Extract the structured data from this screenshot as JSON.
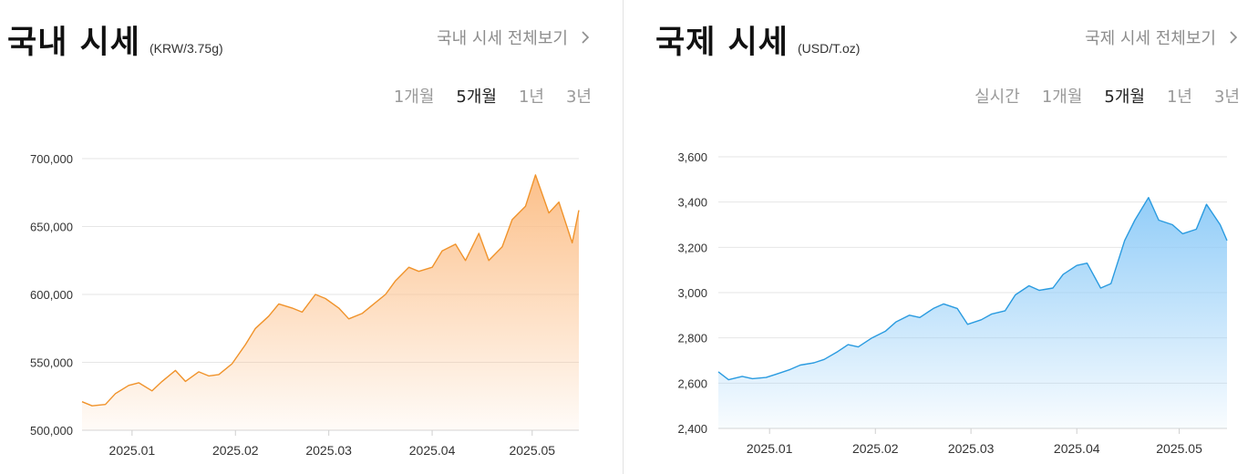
{
  "domestic": {
    "title": "국내 시세",
    "unit": "(KRW/3.75g)",
    "view_all": "국내 시세 전체보기",
    "tabs": [
      {
        "label": "1개월",
        "active": false
      },
      {
        "label": "5개월",
        "active": true
      },
      {
        "label": "1년",
        "active": false
      },
      {
        "label": "3년",
        "active": false
      }
    ]
  },
  "international": {
    "title": "국제 시세",
    "unit": "(USD/T.oz)",
    "view_all": "국제 시세 전체보기",
    "tabs": [
      {
        "label": "실시간",
        "active": false
      },
      {
        "label": "1개월",
        "active": false
      },
      {
        "label": "5개월",
        "active": true
      },
      {
        "label": "1년",
        "active": false
      },
      {
        "label": "3년",
        "active": false
      }
    ]
  },
  "chart_data": [
    {
      "type": "area",
      "ylim": [
        500000,
        700000
      ],
      "grid": true,
      "line_color": "#f0932b",
      "fill_color": "#fcc08a",
      "x_range": [
        "2024-12-17",
        "2025-05-15"
      ],
      "x_ticks": [
        {
          "label": "2025.01",
          "date": "2025-01-01"
        },
        {
          "label": "2025.02",
          "date": "2025-02-01"
        },
        {
          "label": "2025.03",
          "date": "2025-03-01"
        },
        {
          "label": "2025.04",
          "date": "2025-04-01"
        },
        {
          "label": "2025.05",
          "date": "2025-05-01"
        }
      ],
      "y_ticks": [
        {
          "label": "500,000",
          "value": 500000
        },
        {
          "label": "550,000",
          "value": 550000
        },
        {
          "label": "600,000",
          "value": 600000
        },
        {
          "label": "650,000",
          "value": 650000
        },
        {
          "label": "700,000",
          "value": 700000
        }
      ],
      "series": [
        {
          "x": [
            "2024-12-17",
            "2024-12-20",
            "2024-12-24",
            "2024-12-27",
            "2024-12-31",
            "2025-01-03",
            "2025-01-07",
            "2025-01-10",
            "2025-01-14",
            "2025-01-17",
            "2025-01-21",
            "2025-01-24",
            "2025-01-27",
            "2025-01-31",
            "2025-02-04",
            "2025-02-07",
            "2025-02-11",
            "2025-02-14",
            "2025-02-18",
            "2025-02-21",
            "2025-02-25",
            "2025-02-28",
            "2025-03-04",
            "2025-03-07",
            "2025-03-11",
            "2025-03-14",
            "2025-03-18",
            "2025-03-21",
            "2025-03-25",
            "2025-03-28",
            "2025-04-01",
            "2025-04-04",
            "2025-04-08",
            "2025-04-11",
            "2025-04-15",
            "2025-04-18",
            "2025-04-22",
            "2025-04-25",
            "2025-04-29",
            "2025-05-02",
            "2025-05-06",
            "2025-05-09",
            "2025-05-13",
            "2025-05-15"
          ],
          "values": [
            521000,
            518000,
            519000,
            527000,
            533000,
            535000,
            529000,
            536000,
            544000,
            536000,
            543000,
            540000,
            541000,
            549000,
            563000,
            575000,
            584000,
            593000,
            590000,
            587000,
            600000,
            597000,
            590000,
            582000,
            586000,
            592000,
            600000,
            610000,
            620000,
            617000,
            620000,
            632000,
            637000,
            625000,
            645000,
            625000,
            635000,
            655000,
            665000,
            688000,
            660000,
            668000,
            638000,
            662000
          ]
        }
      ]
    },
    {
      "type": "area",
      "ylim": [
        2400,
        3600
      ],
      "grid": true,
      "line_color": "#2a9be0",
      "fill_color": "#92cdf8",
      "x_range": [
        "2024-12-17",
        "2025-05-15"
      ],
      "x_ticks": [
        {
          "label": "2025.01",
          "date": "2025-01-01"
        },
        {
          "label": "2025.02",
          "date": "2025-02-01"
        },
        {
          "label": "2025.03",
          "date": "2025-03-01"
        },
        {
          "label": "2025.04",
          "date": "2025-04-01"
        },
        {
          "label": "2025.05",
          "date": "2025-05-01"
        }
      ],
      "y_ticks": [
        {
          "label": "2,400",
          "value": 2400
        },
        {
          "label": "2,600",
          "value": 2600
        },
        {
          "label": "2,800",
          "value": 2800
        },
        {
          "label": "3,000",
          "value": 3000
        },
        {
          "label": "3,200",
          "value": 3200
        },
        {
          "label": "3,400",
          "value": 3400
        },
        {
          "label": "3,600",
          "value": 3600
        }
      ],
      "series": [
        {
          "x": [
            "2024-12-17",
            "2024-12-20",
            "2024-12-24",
            "2024-12-27",
            "2024-12-31",
            "2025-01-03",
            "2025-01-07",
            "2025-01-10",
            "2025-01-14",
            "2025-01-17",
            "2025-01-21",
            "2025-01-24",
            "2025-01-27",
            "2025-01-31",
            "2025-02-04",
            "2025-02-07",
            "2025-02-11",
            "2025-02-14",
            "2025-02-18",
            "2025-02-21",
            "2025-02-25",
            "2025-02-28",
            "2025-03-04",
            "2025-03-07",
            "2025-03-11",
            "2025-03-14",
            "2025-03-18",
            "2025-03-21",
            "2025-03-25",
            "2025-03-28",
            "2025-04-01",
            "2025-04-04",
            "2025-04-08",
            "2025-04-11",
            "2025-04-15",
            "2025-04-18",
            "2025-04-22",
            "2025-04-25",
            "2025-04-29",
            "2025-05-02",
            "2025-05-06",
            "2025-05-09",
            "2025-05-13",
            "2025-05-15"
          ],
          "values": [
            2650,
            2615,
            2630,
            2620,
            2625,
            2640,
            2660,
            2680,
            2690,
            2705,
            2740,
            2770,
            2760,
            2800,
            2830,
            2870,
            2900,
            2890,
            2930,
            2950,
            2930,
            2860,
            2880,
            2905,
            2920,
            2990,
            3030,
            3010,
            3020,
            3080,
            3120,
            3130,
            3020,
            3040,
            3230,
            3320,
            3420,
            3320,
            3300,
            3260,
            3280,
            3390,
            3300,
            3230
          ]
        }
      ]
    }
  ]
}
